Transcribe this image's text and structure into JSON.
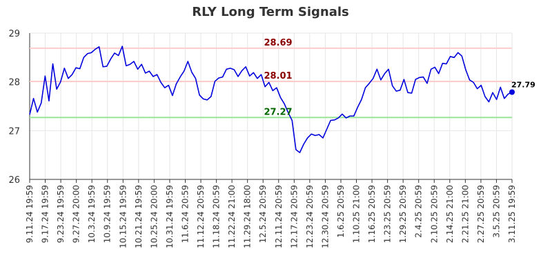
{
  "chart_data": {
    "type": "line",
    "title": "RLY Long Term Signals",
    "xlabel": "",
    "ylabel": "",
    "ylim": [
      26,
      29
    ],
    "yticks": [
      26,
      27,
      28,
      29
    ],
    "grid": true,
    "line_color": "#0000dd",
    "x_tick_labels": [
      "9.11.24 19:59",
      "9.17.24 19:59",
      "9.23.24 19:59",
      "9.27.24 20:00",
      "10.3.24 19:59",
      "10.9.24 19:59",
      "10.15.24 19:59",
      "10.21.24 19:59",
      "10.25.24 20:00",
      "10.31.24 19:59",
      "11.6.24 20:59",
      "11.12.24 20:59",
      "11.18.24 20:59",
      "11.22.24 21:00",
      "11.29.24 18:00",
      "12.5.24 20:59",
      "12.11.24 20:59",
      "12.17.24 20:59",
      "12.23.24 20:59",
      "12.30.24 20:59",
      "1.6.25 20:59",
      "1.10.25 21:00",
      "1.16.25 20:59",
      "1.23.25 20:59",
      "1.29.25 20:59",
      "2.4.25 20:59",
      "2.10.25 20:59",
      "2.14.25 21:00",
      "2.21.25 21:00",
      "2.27.25 20:59",
      "3.5.25 20:59",
      "3.11.25 19:59"
    ],
    "series": [
      {
        "values": [
          27.33,
          27.66,
          27.38,
          27.57,
          28.12,
          27.61,
          28.37,
          27.85,
          28.0,
          28.28,
          28.07,
          28.15,
          28.29,
          28.27,
          28.5,
          28.58,
          28.6,
          28.67,
          28.72,
          28.31,
          28.32,
          28.47,
          28.59,
          28.54,
          28.73,
          28.33,
          28.36,
          28.42,
          28.26,
          28.36,
          28.18,
          28.22,
          28.11,
          28.15,
          27.99,
          27.88,
          27.93,
          27.72,
          27.96,
          28.1,
          28.22,
          28.42,
          28.2,
          28.07,
          27.73,
          27.65,
          27.63,
          27.7,
          28.01,
          28.08,
          28.1,
          28.26,
          28.28,
          28.25,
          28.11,
          28.23,
          28.31,
          28.12,
          28.19,
          28.07,
          28.15,
          27.9,
          27.99,
          27.82,
          27.88,
          27.68,
          27.55,
          27.37,
          27.21,
          26.61,
          26.55,
          26.72,
          26.85,
          26.93,
          26.9,
          26.92,
          26.85,
          27.03,
          27.21,
          27.22,
          27.26,
          27.34,
          27.26,
          27.3,
          27.3,
          27.48,
          27.64,
          27.88,
          27.97,
          28.07,
          28.26,
          28.04,
          28.17,
          28.26,
          27.92,
          27.81,
          27.83,
          28.05,
          27.78,
          27.77,
          28.05,
          28.09,
          28.1,
          27.97,
          28.26,
          28.3,
          28.17,
          28.38,
          28.37,
          28.52,
          28.5,
          28.6,
          28.53,
          28.25,
          28.04,
          27.99,
          27.86,
          27.93,
          27.7,
          27.59,
          27.78,
          27.64,
          27.89,
          27.66,
          27.75,
          27.79
        ]
      }
    ],
    "signal_lines": [
      {
        "value": 28.69,
        "label": "28.69",
        "color": "#ffcccc",
        "label_color": "#8b0000"
      },
      {
        "value": 28.01,
        "label": "28.01",
        "color": "#ffcccc",
        "label_color": "#8b0000"
      },
      {
        "value": 27.27,
        "label": "27.27",
        "color": "#99e699",
        "label_color": "#006400"
      }
    ],
    "last_value_label": "27.79"
  }
}
